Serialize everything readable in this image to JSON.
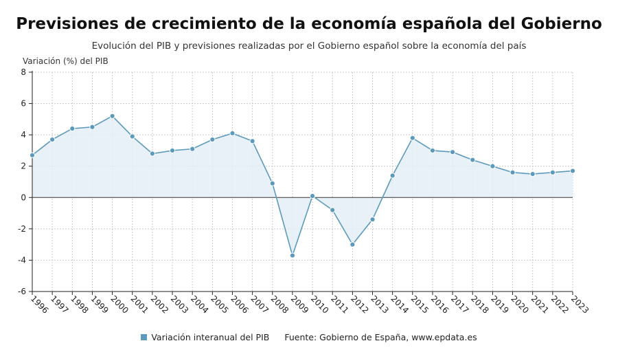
{
  "chart_data": {
    "type": "area",
    "title": "Previsiones de crecimiento de la economía española del Gobierno",
    "subtitle": "Evolución del PIB y previsiones realizadas por el Gobierno español sobre la economía del país",
    "ylabel": "Variación (%) del PIB",
    "xlabel": "",
    "ylim": [
      -6,
      8
    ],
    "yticks": [
      -6,
      -4,
      -2,
      0,
      2,
      4,
      6,
      8
    ],
    "grid": true,
    "x": [
      "1996",
      "1997",
      "1998",
      "1999",
      "2000",
      "2001",
      "2002",
      "2003",
      "2004",
      "2005",
      "2006",
      "2007",
      "2008",
      "2009",
      "2010",
      "2011",
      "2012",
      "2013",
      "2014",
      "2015",
      "2016",
      "2017",
      "2018",
      "2019",
      "2020",
      "2021",
      "2022",
      "2023"
    ],
    "series": [
      {
        "name": "Variación interanual del PIB",
        "values": [
          2.7,
          3.7,
          4.4,
          4.5,
          5.2,
          3.9,
          2.8,
          3.0,
          3.1,
          3.7,
          4.1,
          3.6,
          0.9,
          -3.7,
          0.1,
          -0.8,
          -3.0,
          -1.4,
          1.4,
          3.8,
          3.0,
          2.9,
          2.4,
          2.0,
          1.6,
          1.5,
          1.6,
          1.7
        ]
      }
    ],
    "legend": "bottom",
    "source": "Fuente: Gobierno de España, www.epdata.es"
  },
  "colors": {
    "line": "#5b9abc",
    "marker": "#5b9abc",
    "fill": "#e4eff6",
    "grid": "#c8c8c8",
    "axis": "#222222"
  }
}
